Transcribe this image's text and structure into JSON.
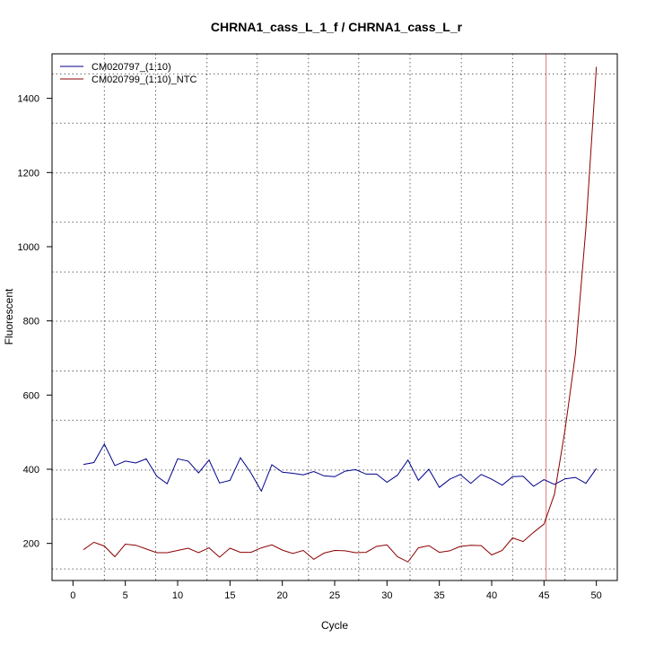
{
  "chart_data": {
    "type": "line",
    "title": "CHRNA1_cass_L_1_f / CHRNA1_cass_L_r",
    "xlabel": "Cycle",
    "ylabel": "Fluorescent",
    "xlim": [
      -2,
      52
    ],
    "ylim": [
      100,
      1520
    ],
    "xticks": [
      0,
      5,
      10,
      15,
      20,
      25,
      30,
      35,
      40,
      45,
      50
    ],
    "yticks": [
      200,
      400,
      600,
      800,
      1000,
      1200,
      1400
    ],
    "grid": true,
    "grid_x": [
      3,
      7.9,
      12.8,
      17.6,
      22.5,
      27.3,
      32.2,
      37.1,
      42.0,
      47.0
    ],
    "grid_y": [
      131,
      265,
      398,
      532,
      665,
      799,
      932,
      1066,
      1199,
      1333,
      1466
    ],
    "threshold_x": 45.2,
    "threshold_color": "#dd7777",
    "legend_position": "top-left",
    "series": [
      {
        "name": "CM020797_(1:10)",
        "color": "#00008b",
        "x": [
          1,
          2,
          3,
          4,
          5,
          6,
          7,
          8,
          9,
          10,
          11,
          12,
          13,
          14,
          15,
          16,
          17,
          18,
          19,
          20,
          21,
          22,
          23,
          24,
          25,
          26,
          27,
          28,
          29,
          30,
          31,
          32,
          33,
          34,
          35,
          36,
          37,
          38,
          39,
          40,
          41,
          42,
          43,
          44,
          45,
          46,
          47,
          48,
          49,
          50
        ],
        "values": [
          413,
          418,
          468,
          410,
          422,
          417,
          428,
          381,
          361,
          428,
          422,
          390,
          425,
          363,
          370,
          431,
          390,
          341,
          412,
          392,
          389,
          385,
          394,
          382,
          380,
          395,
          399,
          387,
          387,
          365,
          384,
          425,
          370,
          400,
          351,
          373,
          386,
          362,
          386,
          373,
          357,
          380,
          381,
          354,
          372,
          359,
          374,
          378,
          362,
          402
        ]
      },
      {
        "name": "CM020799_(1:10)_NTC",
        "color": "#8b0000",
        "x": [
          1,
          2,
          3,
          4,
          5,
          6,
          7,
          8,
          9,
          10,
          11,
          12,
          13,
          14,
          15,
          16,
          17,
          18,
          19,
          20,
          21,
          22,
          23,
          24,
          25,
          26,
          27,
          28,
          29,
          30,
          31,
          32,
          33,
          34,
          35,
          36,
          37,
          38,
          39,
          40,
          41,
          42,
          43,
          44,
          45,
          46,
          47,
          48,
          49,
          50
        ],
        "values": [
          183,
          203,
          193,
          164,
          198,
          195,
          185,
          175,
          175,
          181,
          187,
          175,
          188,
          163,
          187,
          176,
          176,
          188,
          196,
          182,
          173,
          181,
          157,
          174,
          181,
          180,
          175,
          176,
          192,
          196,
          164,
          150,
          188,
          194,
          176,
          180,
          192,
          195,
          194,
          169,
          181,
          215,
          205,
          230,
          252,
          333,
          505,
          710,
          1050,
          1485
        ]
      }
    ]
  }
}
